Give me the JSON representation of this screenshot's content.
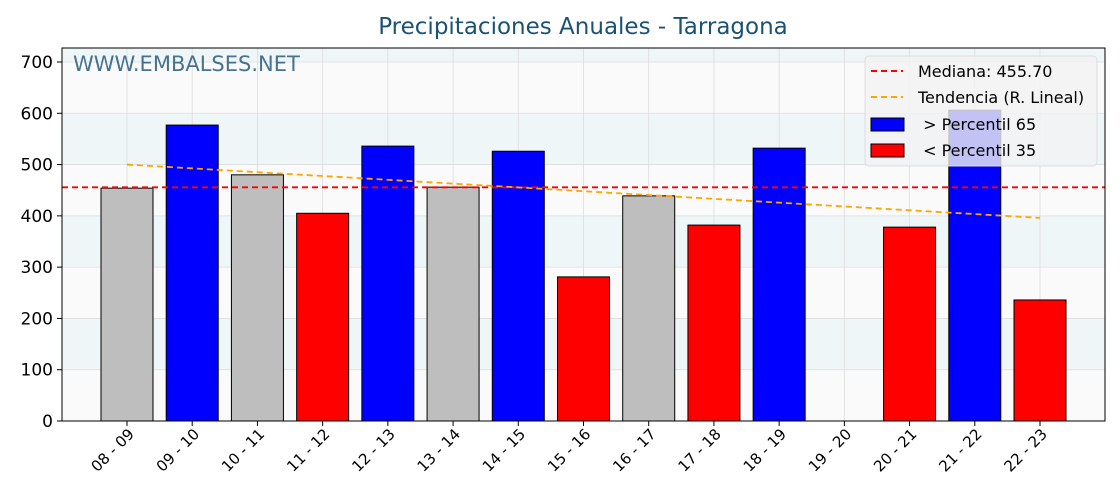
{
  "chart_data": {
    "type": "bar",
    "title": "Precipitaciones Anuales - Tarragona",
    "watermark": "WWW.EMBALSES.NET",
    "xlabel": "",
    "ylabel": "",
    "ylim": [
      0,
      730
    ],
    "yticks": [
      0,
      100,
      200,
      300,
      400,
      500,
      600,
      700
    ],
    "categories": [
      "08 - 09",
      "09 - 10",
      "10 - 11",
      "11 - 12",
      "12 - 13",
      "13 - 14",
      "14 - 15",
      "15 - 16",
      "16 - 17",
      "17 - 18",
      "18 - 19",
      "19 - 20",
      "20 - 21",
      "21 - 22",
      "22 - 23"
    ],
    "values": [
      454,
      577,
      480,
      405,
      536,
      456,
      526,
      281,
      439,
      382,
      532,
      0,
      378,
      606,
      236
    ],
    "classes": [
      "mid",
      "high",
      "mid",
      "low",
      "high",
      "mid",
      "high",
      "low",
      "mid",
      "low",
      "high",
      "mid",
      "low",
      "high",
      "low"
    ],
    "median": 455.7,
    "trend": [
      500,
      396
    ],
    "legend": {
      "position": "top-right",
      "items": [
        "Mediana: 455.70",
        "Tendencia (R. Lineal)",
        " > Percentil 65",
        " < Percentil 35"
      ]
    },
    "colors": {
      "high": "#0000ff",
      "low": "#ff0000",
      "mid": "#bebebe",
      "median": "#ff0000",
      "trend": "#ffa500",
      "title": "#1a5276"
    }
  }
}
